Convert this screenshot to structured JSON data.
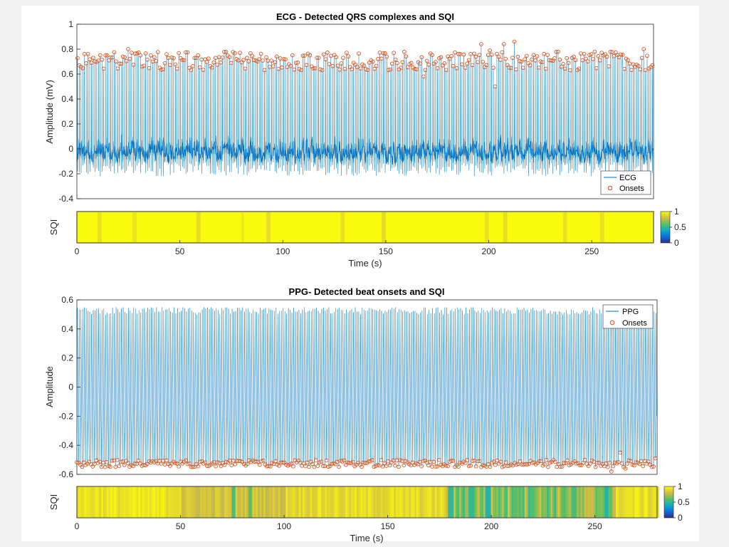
{
  "figure": {
    "background": "#f0f0f0",
    "plot_background": "#ffffff",
    "ecg_color": "#0072bd",
    "ppg_color": "#0072bd",
    "onset_color": "#d95319"
  },
  "chart_data": [
    {
      "type": "line",
      "title": "ECG - Detected QRS complexes and SQI",
      "xlabel": "",
      "ylabel": "Amplitude (mV)",
      "xlim": [
        0,
        280
      ],
      "ylim": [
        -0.4,
        1
      ],
      "yticks": [
        "-0.4",
        "-0.2",
        "0",
        "0.2",
        "0.4",
        "0.6",
        "0.8",
        "1"
      ],
      "grid": false,
      "legend_position": "bottom-right",
      "series": [
        {
          "name": "ECG",
          "style": "line",
          "description_values": {
            "beats": 330,
            "baseline_range": [
              -0.2,
              0.15
            ],
            "peak_range": [
              0.62,
              0.86
            ]
          }
        },
        {
          "name": "Onsets",
          "style": "markers"
        }
      ],
      "onset_peaks_sample": [
        {
          "t": 0.5,
          "v": 0.67
        },
        {
          "t": 25,
          "v": 0.8
        },
        {
          "t": 58,
          "v": 0.73
        },
        {
          "t": 100,
          "v": 0.72
        },
        {
          "t": 150,
          "v": 0.74
        },
        {
          "t": 168,
          "v": 0.58
        },
        {
          "t": 196,
          "v": 0.84
        },
        {
          "t": 200,
          "v": 0.79
        },
        {
          "t": 203,
          "v": 0.5
        },
        {
          "t": 207,
          "v": 0.84
        },
        {
          "t": 212,
          "v": 0.86
        },
        {
          "t": 216,
          "v": 0.65
        },
        {
          "t": 250,
          "v": 0.72
        },
        {
          "t": 275,
          "v": 0.8
        },
        {
          "t": 279,
          "v": 0.67
        }
      ]
    },
    {
      "type": "heatmap",
      "title": "",
      "xlabel": "Time (s)",
      "ylabel": "SQI",
      "xlim": [
        0,
        280
      ],
      "xticks": [
        "0",
        "50",
        "100",
        "150",
        "200",
        "250"
      ],
      "colorbar": {
        "range": [
          0,
          1
        ],
        "ticks": [
          "0",
          "0.5",
          "1"
        ]
      },
      "low_quality_segments": [
        {
          "start": 10,
          "end": 12,
          "sqi": 0.92
        },
        {
          "start": 27,
          "end": 29,
          "sqi": 0.93
        },
        {
          "start": 58,
          "end": 60,
          "sqi": 0.9
        },
        {
          "start": 80,
          "end": 81,
          "sqi": 0.93
        },
        {
          "start": 92,
          "end": 94,
          "sqi": 0.91
        },
        {
          "start": 128,
          "end": 130,
          "sqi": 0.92
        },
        {
          "start": 148,
          "end": 150,
          "sqi": 0.9
        },
        {
          "start": 198,
          "end": 200,
          "sqi": 0.92
        },
        {
          "start": 207,
          "end": 209,
          "sqi": 0.91
        },
        {
          "start": 236,
          "end": 238,
          "sqi": 0.92
        },
        {
          "start": 254,
          "end": 256,
          "sqi": 0.92
        }
      ]
    },
    {
      "type": "line",
      "title": "PPG- Detected beat onsets and SQI",
      "xlabel": "",
      "ylabel": "Amplitude",
      "xlim": [
        0,
        280
      ],
      "ylim": [
        -0.6,
        0.6
      ],
      "yticks": [
        "-0.6",
        "-0.4",
        "-0.2",
        "0",
        "0.2",
        "0.4",
        "0.6"
      ],
      "grid": false,
      "legend_position": "top-right",
      "series": [
        {
          "name": "PPG",
          "style": "line",
          "description_values": {
            "beats": 330,
            "top_range": [
              0.5,
              0.56
            ],
            "bottom_range": [
              -0.55,
              -0.5
            ]
          }
        },
        {
          "name": "Onsets",
          "style": "markers"
        }
      ],
      "onset_troughs_sample": [
        {
          "t": 0.5,
          "v": -0.52
        },
        {
          "t": 60,
          "v": -0.51
        },
        {
          "t": 100,
          "v": -0.52
        },
        {
          "t": 150,
          "v": -0.51
        },
        {
          "t": 200,
          "v": -0.52
        },
        {
          "t": 240,
          "v": -0.51
        },
        {
          "t": 258,
          "v": -0.58
        },
        {
          "t": 262,
          "v": -0.45
        },
        {
          "t": 265,
          "v": -0.56
        },
        {
          "t": 279,
          "v": -0.49
        }
      ]
    },
    {
      "type": "heatmap",
      "title": "",
      "xlabel": "Time (s)",
      "ylabel": "SQI",
      "xlim": [
        0,
        280
      ],
      "xticks": [
        "0",
        "50",
        "100",
        "150",
        "200",
        "250"
      ],
      "colorbar": {
        "range": [
          0,
          1
        ],
        "ticks": [
          "0",
          "0.5",
          "1"
        ]
      },
      "quality_profile": [
        {
          "start": 0,
          "end": 50,
          "sqi": 0.93
        },
        {
          "start": 50,
          "end": 100,
          "sqi": 0.82
        },
        {
          "start": 100,
          "end": 178,
          "sqi": 0.9
        },
        {
          "start": 178,
          "end": 260,
          "sqi": 0.68
        },
        {
          "start": 260,
          "end": 280,
          "sqi": 0.92
        }
      ],
      "noted_low_points": [
        {
          "t": 75,
          "sqi": 0.55
        },
        {
          "t": 83,
          "sqi": 0.6
        },
        {
          "t": 180,
          "sqi": 0.5
        },
        {
          "t": 190,
          "sqi": 0.5
        },
        {
          "t": 198,
          "sqi": 0.45
        },
        {
          "t": 240,
          "sqi": 0.55
        },
        {
          "t": 255,
          "sqi": 0.45
        }
      ]
    }
  ]
}
